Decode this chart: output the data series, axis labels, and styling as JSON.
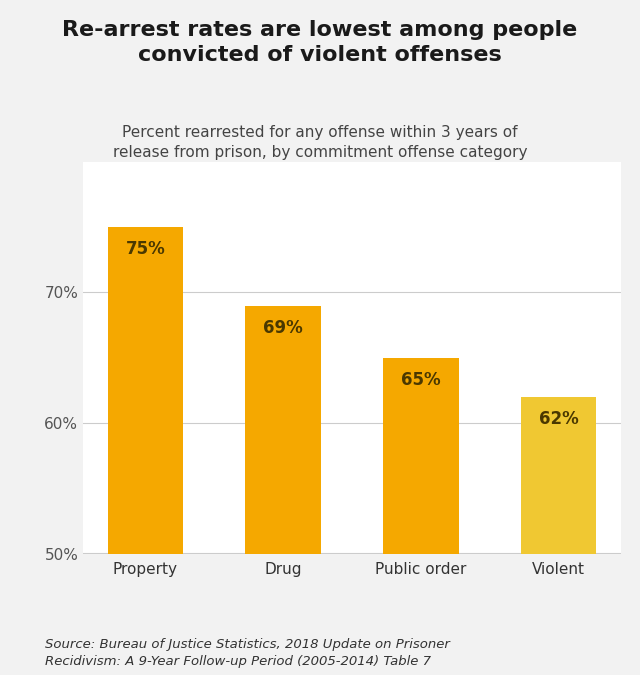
{
  "categories": [
    "Property",
    "Drug",
    "Public order",
    "Violent"
  ],
  "values": [
    75,
    69,
    65,
    62
  ],
  "bar_colors": [
    "#F5A800",
    "#F5A800",
    "#F5A800",
    "#F0C832"
  ],
  "label_color": "#4a3800",
  "title": "Re-arrest rates are lowest among people\nconvicted of violent offenses",
  "subtitle": "Percent rearrested for any offense within 3 years of\nrelease from prison, by commitment offense category",
  "ylabel_ticks": [
    "50%",
    "60%",
    "70%"
  ],
  "ylim": [
    50,
    80
  ],
  "yticks": [
    50,
    60,
    70
  ],
  "source": "Source: Bureau of Justice Statistics, 2018 Update on Prisoner\nRecidivism: A 9-Year Follow-up Period (2005-2014) Table 7",
  "background_color": "#f2f2f2",
  "plot_bg_color": "#ffffff",
  "title_fontsize": 16,
  "subtitle_fontsize": 11,
  "tick_fontsize": 11,
  "bar_label_fontsize": 12,
  "source_fontsize": 9.5
}
